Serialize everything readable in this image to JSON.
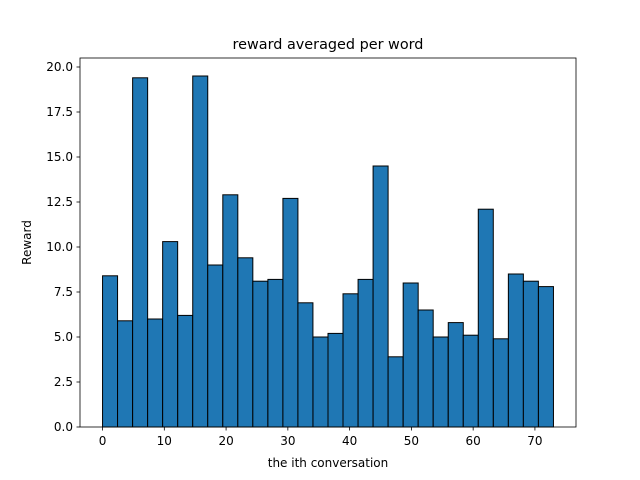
{
  "chart_data": {
    "type": "bar",
    "title": "reward averaged per word",
    "xlabel": "the ith conversation",
    "ylabel": "Reward",
    "xlim": [
      -3.65,
      76.65
    ],
    "ylim": [
      0.0,
      20.5
    ],
    "bin_width": 2.43,
    "x_ticks": [
      0,
      10,
      20,
      30,
      40,
      50,
      60,
      70
    ],
    "x_tick_labels": [
      "0",
      "10",
      "20",
      "30",
      "40",
      "50",
      "60",
      "70"
    ],
    "y_ticks": [
      0.0,
      2.5,
      5.0,
      7.5,
      10.0,
      12.5,
      15.0,
      17.5,
      20.0
    ],
    "y_tick_labels": [
      "0.0",
      "2.5",
      "5.0",
      "7.5",
      "10.0",
      "12.5",
      "15.0",
      "17.5",
      "20.0"
    ],
    "bin_starts": [
      0,
      2.43,
      4.87,
      7.3,
      9.73,
      12.17,
      14.6,
      17.03,
      19.47,
      21.9,
      24.33,
      26.77,
      29.2,
      31.63,
      34.07,
      36.5,
      38.93,
      41.37,
      43.8,
      46.23,
      48.67,
      51.1,
      53.53,
      55.97,
      58.4,
      60.83,
      63.27,
      65.7,
      68.13,
      70.57
    ],
    "values": [
      8.4,
      5.9,
      19.4,
      6.0,
      10.3,
      6.2,
      19.5,
      9.0,
      12.9,
      9.4,
      8.1,
      8.2,
      12.7,
      6.9,
      5.0,
      5.2,
      7.4,
      8.2,
      14.5,
      3.9,
      8.0,
      6.5,
      5.0,
      5.8,
      5.1,
      12.1,
      4.9,
      8.5,
      8.1,
      7.8
    ],
    "grid": false,
    "colors": {
      "bar_fill": "#1f77b4",
      "bar_edge": "#000000"
    }
  }
}
